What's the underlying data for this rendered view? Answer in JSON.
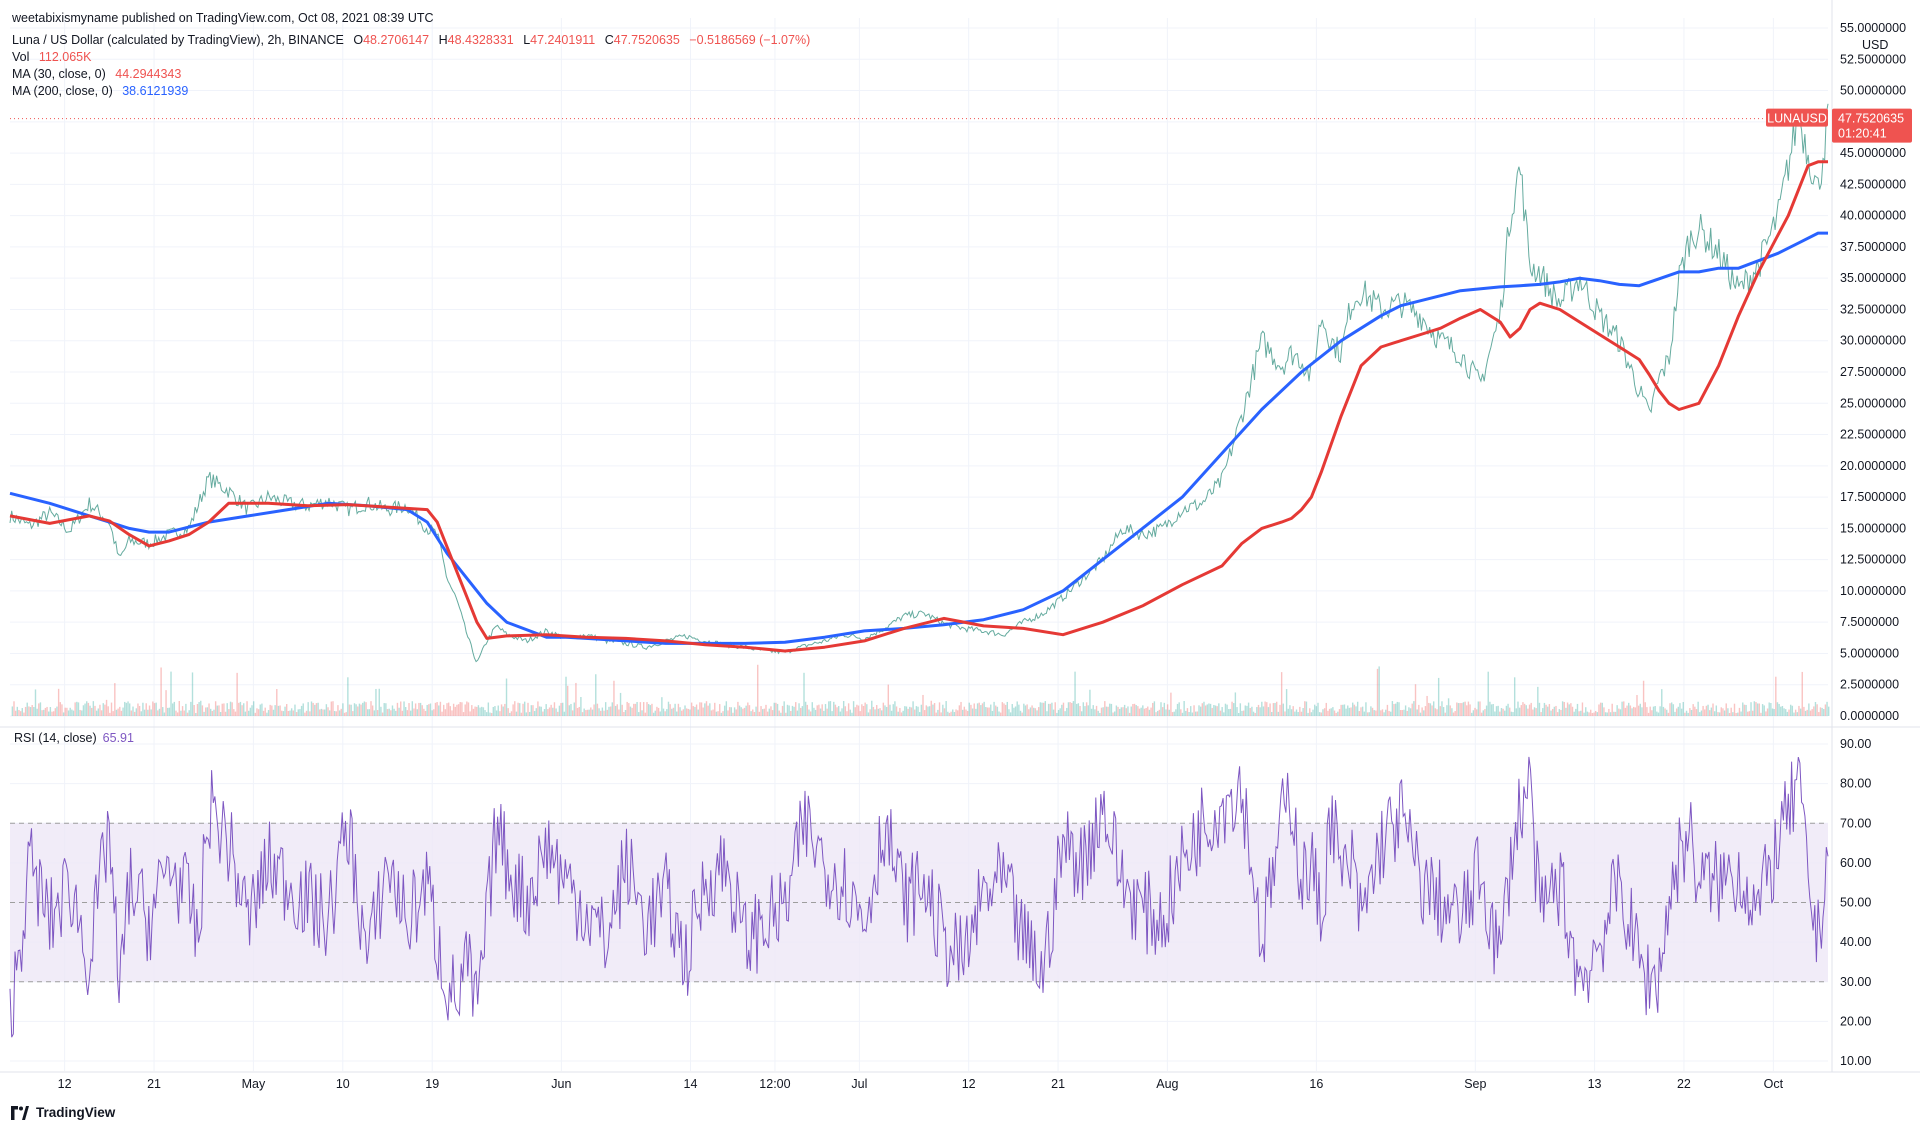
{
  "publisher": "weetabixismyname published on TradingView.com, Oct 08, 2021 08:39 UTC",
  "symbol_title": "Luna / US Dollar (calculated by TradingView), 2h, BINANCE",
  "ohlc": {
    "o_label": "O",
    "o": "48.2706147",
    "h_label": "H",
    "h": "48.4328331",
    "l_label": "L",
    "l": "47.2401911",
    "c_label": "C",
    "c": "47.7520635",
    "change": "−0.5186569 (−1.07%)"
  },
  "indicators": {
    "vol_label": "Vol",
    "vol_value": "112.065K",
    "ma30_label": "MA (30, close, 0)",
    "ma30_value": "44.2944343",
    "ma200_label": "MA (200, close, 0)",
    "ma200_value": "38.6121939",
    "rsi_label": "RSI (14, close)",
    "rsi_value": "65.91"
  },
  "price_tag": {
    "symbol": "LUNAUSD",
    "price": "47.7520635",
    "countdown": "01:20:41"
  },
  "currency": "USD",
  "footer": {
    "brand": "TradingView"
  },
  "colors": {
    "up": "#26a69a",
    "down": "#ef5350",
    "ma30": "#e53935",
    "ma200": "#2962ff",
    "rsi": "#7e57c2",
    "rsi_band": "#ede7f6",
    "grid": "#f0f3fa"
  },
  "chart_data": [
    {
      "type": "line",
      "title": "Luna / US Dollar (calculated by TradingView), 2h, BINANCE",
      "y_axis_position": "right",
      "ylim": [
        0,
        55
      ],
      "y_ticks": [
        "0.0000000",
        "2.5000000",
        "5.0000000",
        "7.5000000",
        "10.0000000",
        "12.5000000",
        "15.0000000",
        "17.5000000",
        "20.0000000",
        "22.5000000",
        "25.0000000",
        "27.5000000",
        "30.0000000",
        "32.5000000",
        "35.0000000",
        "37.5000000",
        "40.0000000",
        "42.5000000",
        "45.0000000",
        "47.5000000",
        "50.0000000",
        "52.5000000",
        "55.0000000"
      ],
      "x_ticks": [
        "12",
        "21",
        "May",
        "10",
        "19",
        "Jun",
        "14",
        "12:00",
        "Jul",
        "12",
        "21",
        "Aug",
        "16",
        "Sep",
        "13",
        "22",
        "Oct"
      ],
      "x_range_days": [
        0,
        183
      ],
      "x_tick_days": [
        5.5,
        14.5,
        24.5,
        33.5,
        42.5,
        55.5,
        68.5,
        77.0,
        85.5,
        96.5,
        105.5,
        116.5,
        131.5,
        147.5,
        159.5,
        168.5,
        177.5
      ],
      "price_series": {
        "name": "LUNAUSD",
        "days": [
          0,
          2,
          4,
          6,
          8,
          10,
          11,
          12,
          14,
          16,
          18,
          19,
          20,
          22,
          24,
          26,
          28,
          30,
          32,
          34,
          36,
          38,
          40,
          42,
          43,
          44,
          45,
          46,
          47,
          48,
          49,
          50,
          52,
          54,
          56,
          58,
          60,
          62,
          64,
          66,
          68,
          70,
          72,
          74,
          76,
          78,
          80,
          82,
          84,
          86,
          88,
          90,
          92,
          94,
          96,
          98,
          100,
          102,
          104,
          106,
          108,
          110,
          112,
          114,
          116,
          118,
          120,
          122,
          124,
          126,
          128,
          129,
          130,
          131,
          132,
          133,
          134,
          135,
          136,
          138,
          140,
          142,
          144,
          146,
          148,
          150,
          151,
          152,
          153,
          154,
          155,
          156,
          158,
          160,
          162,
          164,
          165,
          166,
          167,
          168,
          169,
          170,
          172,
          174,
          176,
          178,
          179,
          180,
          181,
          182,
          183
        ],
        "values": [
          16,
          15.2,
          16.2,
          14.8,
          17,
          15.5,
          12.5,
          14,
          13.8,
          14.5,
          15,
          17,
          19,
          18,
          16.5,
          17.5,
          17,
          16.8,
          17.2,
          16.5,
          17,
          16.5,
          16.8,
          15,
          14.5,
          11,
          9.2,
          6.5,
          4.2,
          6,
          7.2,
          6.5,
          6,
          6.8,
          6.2,
          6.5,
          6,
          5.8,
          5.5,
          6,
          6.4,
          6,
          5.7,
          5.5,
          5.2,
          5.1,
          5.6,
          6,
          6.5,
          6.2,
          7,
          8,
          8.2,
          7.4,
          7,
          6.8,
          6.5,
          7.5,
          8.2,
          9.5,
          11,
          12.5,
          15,
          14.5,
          15,
          16.5,
          17,
          18.8,
          24,
          30,
          28,
          29,
          28.5,
          27,
          32,
          30,
          29,
          33,
          34,
          32.5,
          33,
          32,
          30,
          29,
          26.5,
          32,
          40,
          44,
          36,
          35.5,
          34,
          33,
          35,
          32,
          30,
          26,
          24,
          27,
          28.5,
          35,
          38,
          39,
          37,
          34,
          36,
          40,
          44,
          48,
          45,
          42,
          47.8
        ]
      },
      "ma30": {
        "name": "MA (30, close, 0)",
        "days": [
          0,
          4,
          8,
          10,
          12,
          14,
          16,
          18,
          20,
          22,
          26,
          30,
          34,
          38,
          42,
          43,
          44,
          45,
          46,
          47,
          48,
          50,
          54,
          58,
          62,
          66,
          70,
          74,
          78,
          82,
          86,
          90,
          94,
          98,
          102,
          106,
          110,
          114,
          118,
          122,
          124,
          126,
          128,
          129,
          130,
          131,
          132,
          134,
          136,
          138,
          140,
          142,
          144,
          146,
          148,
          150,
          151,
          152,
          153,
          154,
          156,
          158,
          160,
          162,
          164,
          165,
          166,
          167,
          168,
          170,
          172,
          174,
          176,
          177,
          178,
          179,
          180,
          181,
          182,
          183
        ],
        "values": [
          16,
          15.4,
          16,
          15.6,
          14.5,
          13.6,
          14,
          14.5,
          15.5,
          17,
          17,
          16.8,
          16.9,
          16.7,
          16.5,
          15.5,
          13.5,
          11.5,
          9.5,
          7.5,
          6.2,
          6.4,
          6.5,
          6.3,
          6.2,
          6,
          5.7,
          5.5,
          5.2,
          5.5,
          6,
          7,
          7.8,
          7.2,
          7,
          6.5,
          7.5,
          8.8,
          10.5,
          12,
          13.8,
          15,
          15.5,
          15.8,
          16.5,
          17.5,
          19.5,
          24,
          28,
          29.5,
          30,
          30.5,
          31,
          31.8,
          32.5,
          31.5,
          30.3,
          31,
          32.5,
          33,
          32.5,
          31.5,
          30.5,
          29.5,
          28.5,
          27.3,
          26,
          25,
          24.5,
          25,
          28,
          32,
          35.5,
          37,
          38.5,
          40,
          42,
          44,
          44.3,
          44.3
        ]
      },
      "ma200": {
        "name": "MA (200, close, 0)",
        "days": [
          0,
          4,
          8,
          10,
          12,
          14,
          16,
          20,
          24,
          28,
          32,
          36,
          40,
          42,
          44,
          46,
          48,
          50,
          54,
          56,
          58,
          62,
          66,
          70,
          74,
          78,
          82,
          86,
          90,
          94,
          98,
          102,
          106,
          110,
          114,
          118,
          122,
          126,
          130,
          134,
          136,
          138,
          140,
          142,
          144,
          146,
          150,
          152,
          154,
          156,
          158,
          160,
          162,
          164,
          168,
          170,
          172,
          174,
          176,
          178,
          180,
          182,
          183
        ],
        "values": [
          17.8,
          17,
          16,
          15.5,
          15,
          14.7,
          14.7,
          15.5,
          16,
          16.5,
          17,
          16.8,
          16.5,
          15.5,
          13,
          11,
          9,
          7.5,
          6.3,
          6.3,
          6.2,
          6,
          5.8,
          5.8,
          5.8,
          5.9,
          6.3,
          6.8,
          7,
          7.3,
          7.7,
          8.5,
          10,
          12.5,
          15,
          17.5,
          21,
          24.5,
          27.5,
          30,
          31,
          32,
          32.8,
          33.2,
          33.6,
          34,
          34.3,
          34.4,
          34.5,
          34.7,
          35,
          34.8,
          34.5,
          34.4,
          35.5,
          35.5,
          35.8,
          35.8,
          36.4,
          37,
          37.8,
          38.6,
          38.6
        ]
      }
    },
    {
      "type": "area",
      "name": "Vol",
      "note": "volume histogram at bottom of price pane"
    },
    {
      "type": "line",
      "title": "RSI (14, close)",
      "ylim": [
        10,
        90
      ],
      "y_ticks": [
        "10.00",
        "20.00",
        "30.00",
        "40.00",
        "50.00",
        "60.00",
        "70.00",
        "80.00",
        "90.00"
      ],
      "band": [
        30,
        70
      ],
      "mid": 50,
      "series": {
        "name": "RSI",
        "days": [
          0,
          2,
          4,
          6,
          8,
          10,
          11,
          12,
          14,
          16,
          18,
          19,
          20,
          22,
          24,
          26,
          28,
          30,
          32,
          34,
          36,
          38,
          40,
          42,
          43,
          44,
          45,
          46,
          47,
          48,
          49,
          50,
          52,
          54,
          56,
          58,
          60,
          62,
          64,
          66,
          68,
          70,
          72,
          74,
          76,
          78,
          80,
          82,
          84,
          86,
          88,
          90,
          92,
          94,
          96,
          98,
          100,
          102,
          104,
          106,
          108,
          110,
          112,
          114,
          116,
          118,
          120,
          122,
          124,
          126,
          128,
          129,
          130,
          131,
          132,
          133,
          134,
          135,
          136,
          138,
          140,
          142,
          144,
          146,
          148,
          150,
          151,
          152,
          153,
          154,
          155,
          156,
          158,
          160,
          162,
          164,
          165,
          166,
          167,
          168,
          169,
          170,
          172,
          174,
          176,
          178,
          179,
          180,
          181,
          182,
          183
        ],
        "values": [
          20,
          60,
          45,
          55,
          35,
          70,
          25,
          55,
          45,
          60,
          50,
          40,
          75,
          65,
          45,
          60,
          55,
          50,
          45,
          70,
          35,
          60,
          45,
          55,
          40,
          30,
          25,
          35,
          22,
          45,
          70,
          60,
          50,
          65,
          55,
          48,
          40,
          60,
          45,
          52,
          35,
          55,
          60,
          40,
          45,
          48,
          70,
          60,
          55,
          45,
          70,
          50,
          55,
          40,
          35,
          52,
          55,
          40,
          32,
          65,
          60,
          75,
          55,
          48,
          45,
          60,
          70,
          75,
          80,
          40,
          70,
          78,
          55,
          60,
          45,
          75,
          55,
          60,
          45,
          65,
          72,
          55,
          50,
          45,
          58,
          35,
          60,
          74,
          80,
          45,
          52,
          55,
          30,
          40,
          55,
          35,
          30,
          32,
          50,
          62,
          68,
          55,
          55,
          58,
          48,
          65,
          72,
          80,
          55,
          40,
          65
        ]
      }
    }
  ]
}
